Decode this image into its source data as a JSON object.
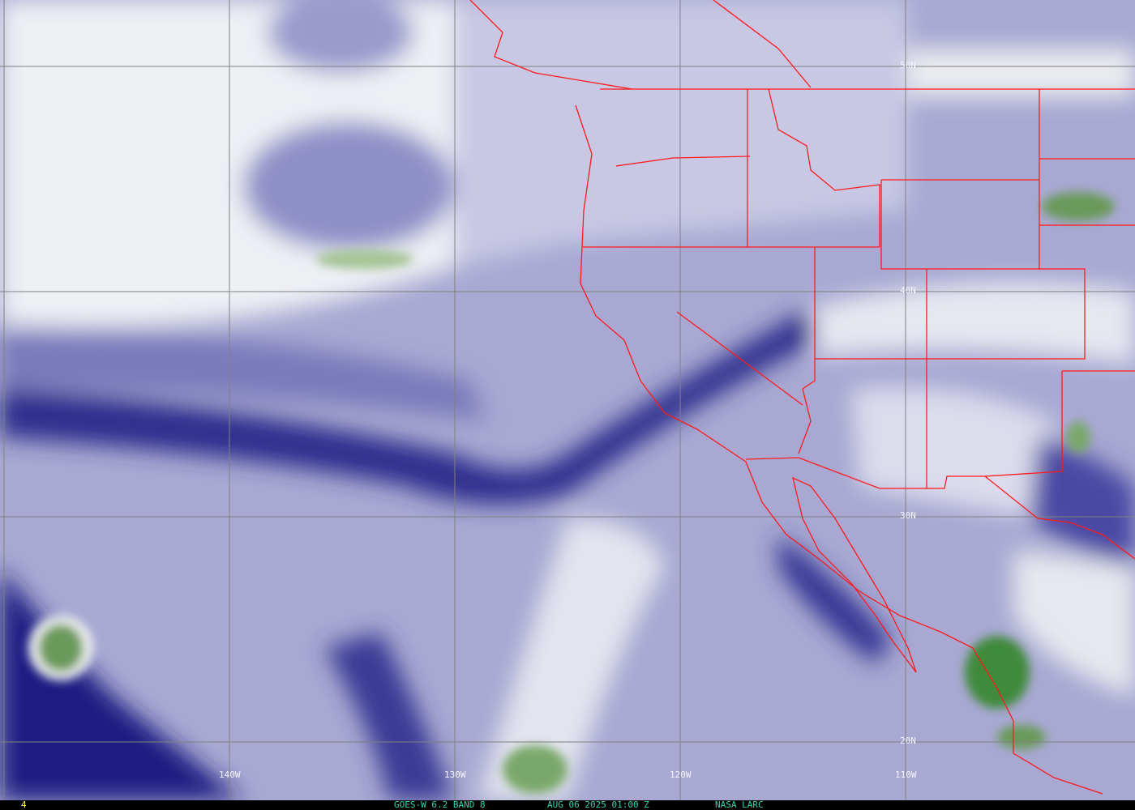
{
  "map": {
    "product": "GOES-W 6.2 BAND 8",
    "timestamp": "AUG 06 2025 01:00 Z",
    "credit": "NASA LARC",
    "frame_number": "4",
    "longitude_labels": [
      "140W",
      "130W",
      "120W",
      "110W"
    ],
    "latitude_labels": [
      "50N",
      "40N",
      "30N",
      "20N"
    ],
    "colors": {
      "border": "#ff1a1a",
      "grid": "#808080",
      "dry": "#1a1a7a",
      "moist": "#f4f6f8",
      "deep_convection": "#4a8a3a",
      "status_text": "#2fd6b0",
      "frame_text": "#ffff40"
    }
  }
}
